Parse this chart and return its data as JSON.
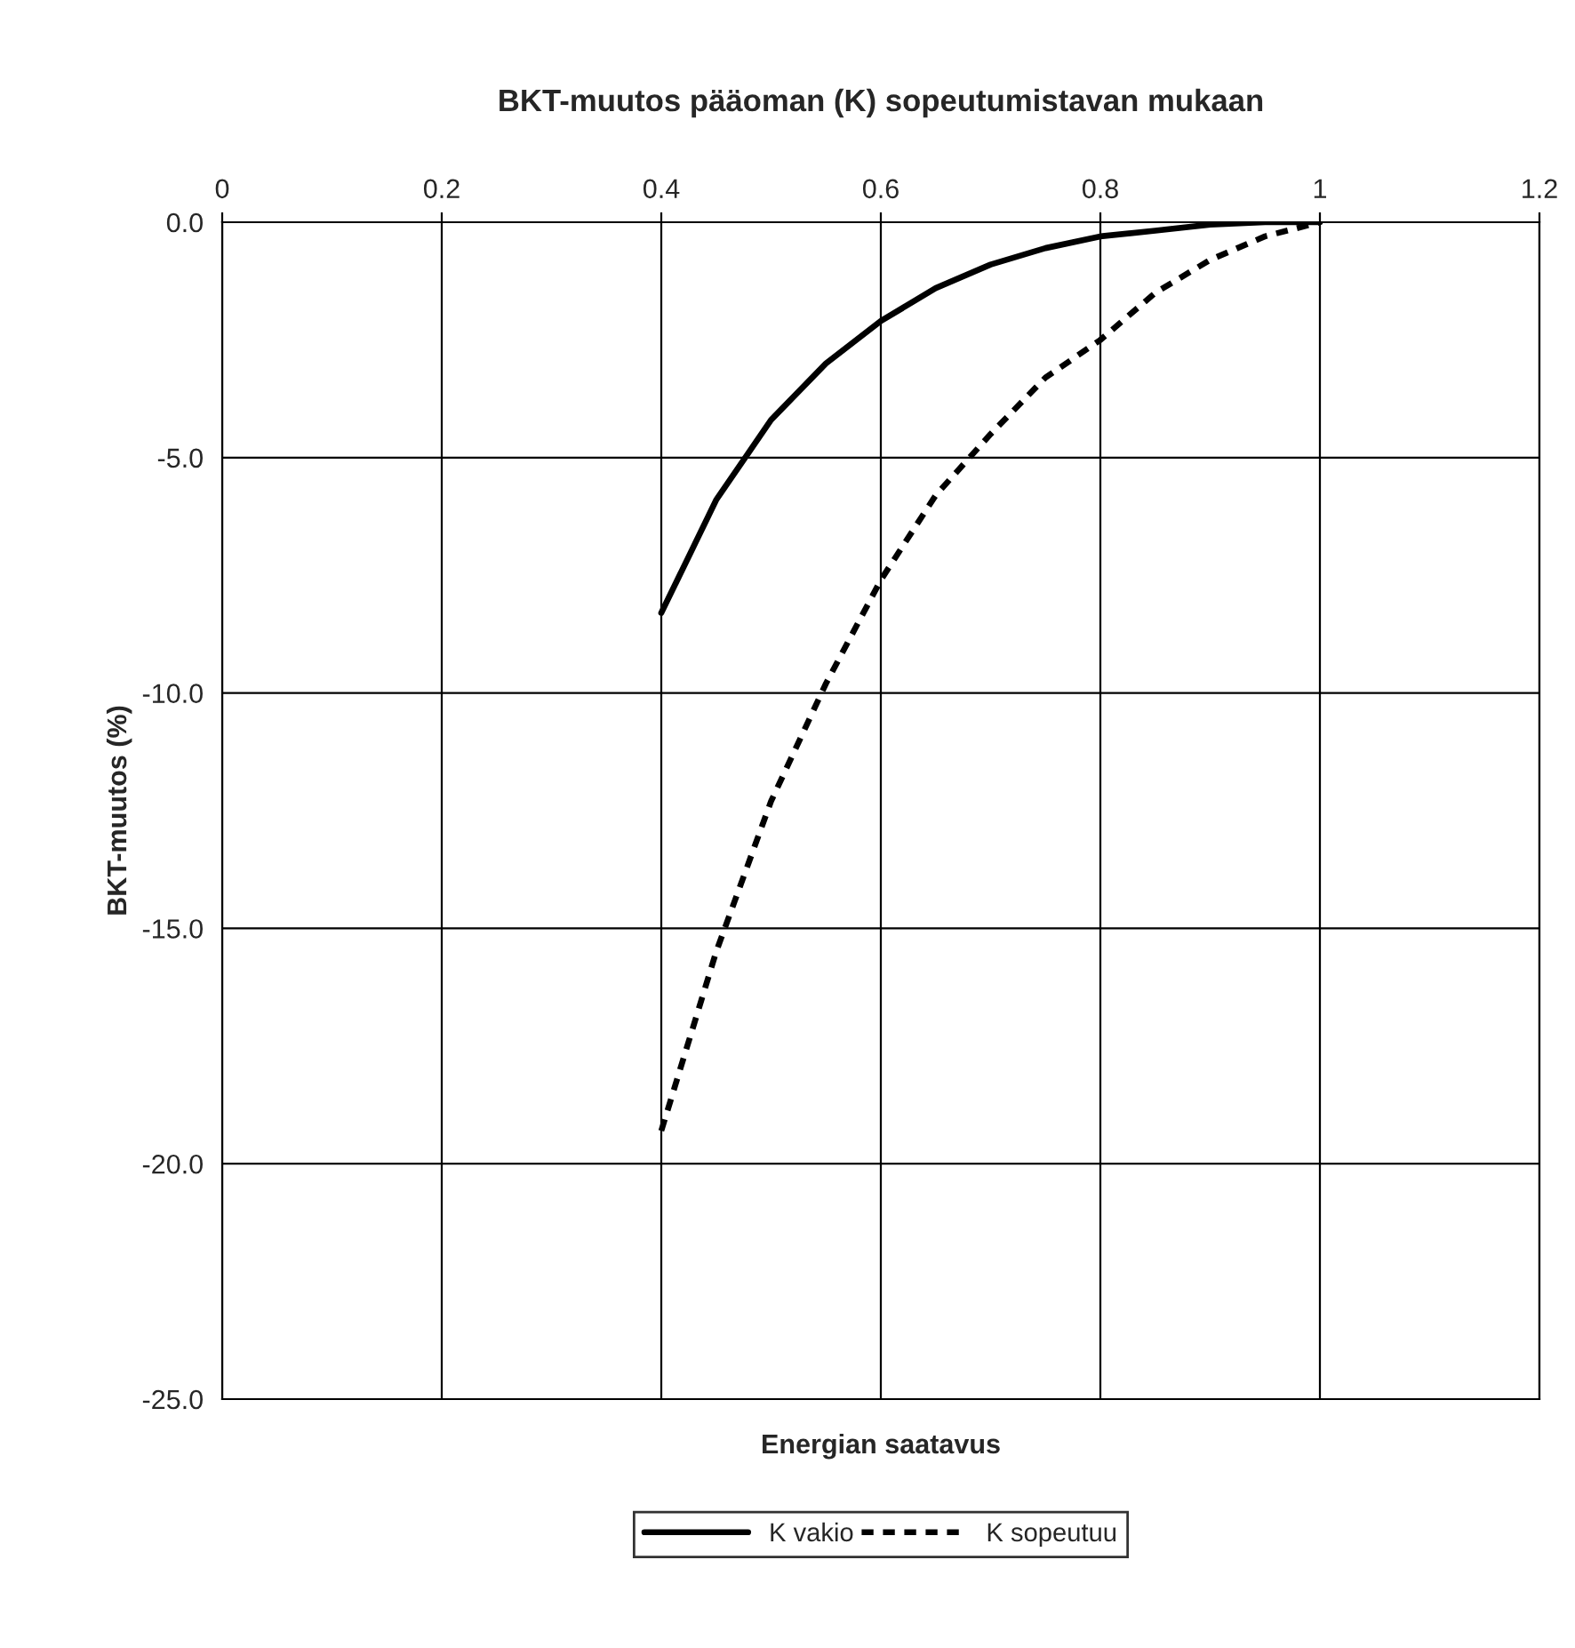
{
  "chart_data": {
    "type": "line",
    "title": "BKT-muutos pääoman (K) sopeutumistavan mukaan",
    "xlabel": "Energian saatavus",
    "ylabel": "BKT-muutos (%)",
    "xlim": [
      0,
      1.2
    ],
    "xticks": [
      0,
      0.2,
      0.4,
      0.6,
      0.8,
      1,
      1.2
    ],
    "ylim": [
      -25,
      0
    ],
    "yticks": [
      {
        "value": -25,
        "label": "-25.0"
      },
      {
        "value": -20,
        "label": "-20.0"
      },
      {
        "value": -15,
        "label": "-15.0"
      },
      {
        "value": -10,
        "label": "-10.0"
      },
      {
        "value": -5,
        "label": "-5.0"
      },
      {
        "value": 0,
        "label": "0.0"
      }
    ],
    "grid": true,
    "legend": "bottom",
    "marker": "none",
    "x": [
      0.4,
      0.45,
      0.5,
      0.55,
      0.6,
      0.65,
      0.7,
      0.75,
      0.8,
      0.85,
      0.9,
      0.95,
      1
    ],
    "series": [
      {
        "name": "K vakio",
        "color": "#000000",
        "line_style": "solid",
        "values": [
          -8.3,
          -5.9,
          -4.2,
          -3.0,
          -2.1,
          -1.4,
          -0.9,
          -0.55,
          -0.3,
          -0.18,
          -0.05,
          0,
          0
        ]
      },
      {
        "name": "K sopeutuu",
        "color": "#000000",
        "line_style": "dashed",
        "values": [
          -19.3,
          -15.5,
          -12.3,
          -9.8,
          -7.6,
          -5.8,
          -4.5,
          -3.3,
          -2.5,
          -1.5,
          -0.8,
          -0.3,
          0
        ]
      }
    ]
  }
}
